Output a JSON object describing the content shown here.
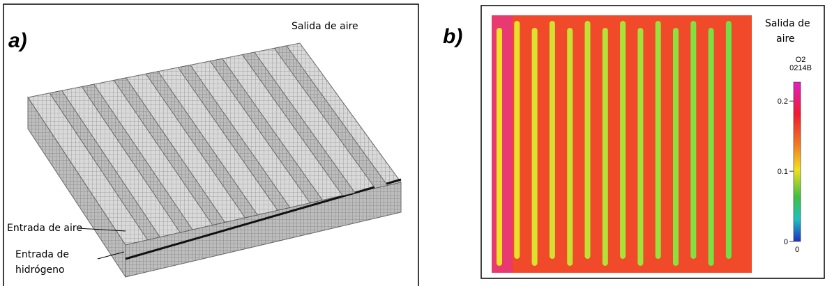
{
  "panel_a": {
    "label": "a)",
    "air_outlet": "Salida de aire",
    "air_inlet": "Entrada de aire",
    "hydrogen_inlet": [
      "Entrada de",
      "hidrógeno"
    ]
  },
  "panel_b": {
    "label": "b)",
    "air_outlet": [
      "Salida de",
      "aire"
    ],
    "colorbar": {
      "title": "O2",
      "subtitle": "0214B",
      "range": [
        0,
        0.227
      ],
      "ticks": [
        0,
        0.1,
        0.2
      ]
    }
  }
}
